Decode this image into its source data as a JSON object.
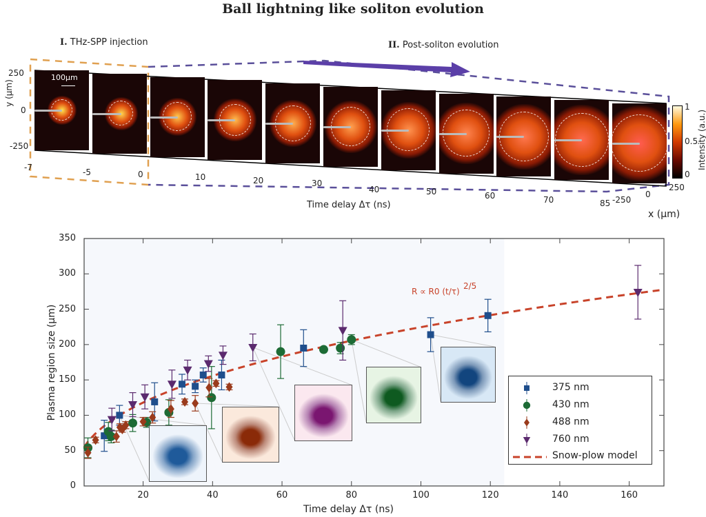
{
  "title": "Ball lightning like soliton evolution",
  "top_panel": {
    "stage1_num": "I.",
    "stage1_label": "THz-SPP injection",
    "stage2_num": "II.",
    "stage2_label": "Post-soliton evolution",
    "scale_bar": "100μm",
    "y_label": "y (μm)",
    "y_ticks": [
      "250",
      "0",
      "-250"
    ],
    "time_ticks": [
      "-7",
      "-5",
      "0",
      "10",
      "20",
      "30",
      "40",
      "50",
      "60",
      "70",
      "85"
    ],
    "time_label": "Time delay Δτ (ns)",
    "x_label": "x (μm)",
    "x_ticks": [
      "-250",
      "0",
      "250"
    ],
    "colorbar_label": "Intensity (a.u.)",
    "colorbar_ticks": [
      "1",
      "0.5",
      "0"
    ],
    "colormap": [
      "#000000",
      "#6b0a00",
      "#d23a00",
      "#ff9a10",
      "#fffbe0"
    ],
    "stage1_color": "#e0a050",
    "stage2_color": "#5a4f9a",
    "arrow_color": "#5b3fa8"
  },
  "chart_data": {
    "type": "scatter",
    "xlabel": "Time delay Δτ (ns)",
    "ylabel": "Plasma region size (μm)",
    "xlim": [
      3,
      170
    ],
    "ylim": [
      0,
      350
    ],
    "xticks": [
      "20",
      "40",
      "60",
      "80",
      "100",
      "120",
      "140",
      "160"
    ],
    "yticks": [
      "0",
      "50",
      "100",
      "150",
      "200",
      "250",
      "300",
      "350"
    ],
    "grid": false,
    "legend_position": "lower-right",
    "annotation": "R ∝ R0 (t/τ)",
    "annotation_exponent": "2/5",
    "series": [
      {
        "name": "375 nm",
        "marker": "square",
        "color": "#1f4e8c",
        "points": [
          [
            8.8,
            71,
            22
          ],
          [
            13.2,
            100,
            14
          ],
          [
            23.3,
            119,
            27
          ],
          [
            31.2,
            144,
            14
          ],
          [
            35,
            141,
            9
          ],
          [
            37.3,
            157,
            10
          ],
          [
            42.6,
            157,
            21
          ],
          [
            66.2,
            195,
            26
          ],
          [
            102.8,
            214,
            24
          ],
          [
            119.3,
            241,
            23
          ]
        ]
      },
      {
        "name": "430 nm",
        "marker": "circle",
        "color": "#1d6b35",
        "points": [
          [
            4.1,
            54,
            14
          ],
          [
            10,
            77,
            13
          ],
          [
            10.8,
            70,
            9
          ],
          [
            17,
            89,
            12
          ],
          [
            21,
            90,
            7
          ],
          [
            27.4,
            104,
            18
          ],
          [
            39.7,
            125,
            44
          ],
          [
            59.6,
            190,
            38
          ],
          [
            72,
            193,
            3
          ],
          [
            76.8,
            195,
            8
          ],
          [
            80,
            207,
            7
          ]
        ]
      },
      {
        "name": "488 nm",
        "marker": "diamond",
        "color": "#9a3b1c",
        "points": [
          [
            4.1,
            47,
            8
          ],
          [
            6.3,
            65,
            4
          ],
          [
            12.3,
            70,
            8
          ],
          [
            13.3,
            83,
            5
          ],
          [
            14,
            80,
            4
          ],
          [
            15,
            86,
            5
          ],
          [
            20,
            91,
            6
          ],
          [
            22.7,
            97,
            8
          ],
          [
            28,
            109,
            12
          ],
          [
            32,
            119,
            4
          ],
          [
            35,
            117,
            11
          ],
          [
            39,
            139,
            13
          ],
          [
            41,
            145,
            4
          ],
          [
            44.8,
            140,
            4
          ]
        ]
      },
      {
        "name": "760 nm",
        "marker": "triangle-down",
        "color": "#5b2a6e",
        "points": [
          [
            11,
            94,
            16
          ],
          [
            17,
            115,
            17
          ],
          [
            20.5,
            126,
            17
          ],
          [
            28.3,
            144,
            20
          ],
          [
            32.8,
            164,
            14
          ],
          [
            38.8,
            173,
            11
          ],
          [
            43,
            185,
            13
          ],
          [
            51.6,
            196,
            19
          ],
          [
            77.5,
            220,
            42
          ],
          [
            162.5,
            274,
            38
          ]
        ]
      }
    ],
    "model": {
      "name": "Snow-plow model",
      "exponent": 0.4,
      "coefficient": 35.6,
      "color": "#c8432a"
    },
    "shaded_region_x": [
      3,
      124
    ],
    "insets": [
      {
        "series": "375 nm",
        "x": 15,
        "color": "#1f5a9a",
        "bg": "#eef4fb"
      },
      {
        "series": "488 nm",
        "x": 34,
        "color": "#8a2a08",
        "bg": "#fbe9dc"
      },
      {
        "series": "760 nm",
        "x": 52,
        "color": "#7a1670",
        "bg": "#fbe8ef"
      },
      {
        "series": "430 nm",
        "x": 80,
        "color": "#0e5a20",
        "bg": "#e7f4e4"
      },
      {
        "series": "375 nm",
        "x": 103,
        "color": "#12457e",
        "bg": "#d8e8f6"
      }
    ]
  }
}
